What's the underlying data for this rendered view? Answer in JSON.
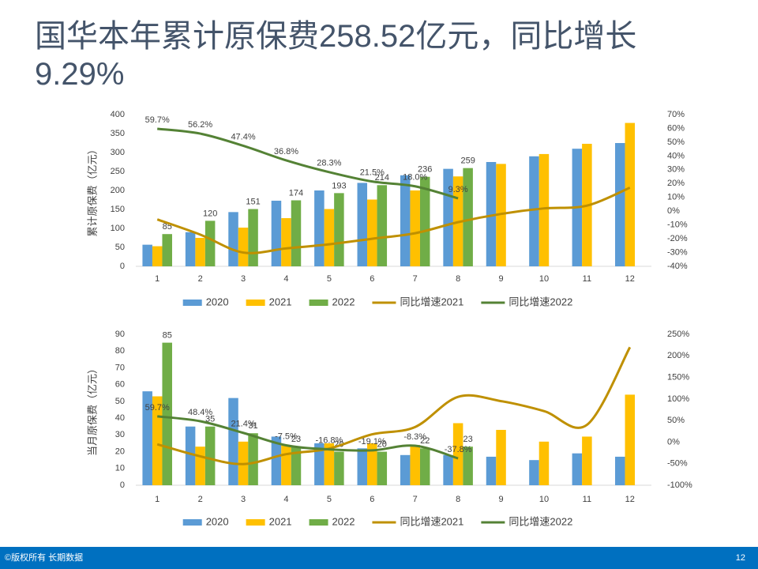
{
  "slide": {
    "title": "国华本年累计原保费258.52亿元，同比增长9.29%",
    "footer": "©版权所有 长期数据",
    "page": "12"
  },
  "chart_data": [
    {
      "type": "bar-line",
      "y_label": "累计原保费（亿元）",
      "categories": [
        "1",
        "2",
        "3",
        "4",
        "5",
        "6",
        "7",
        "8",
        "9",
        "10",
        "11",
        "12"
      ],
      "ylim": [
        0,
        400
      ],
      "yticks": [
        0,
        50,
        100,
        150,
        200,
        250,
        300,
        350,
        400
      ],
      "y2lim": [
        -40,
        70
      ],
      "y2ticks": [
        {
          "value": -40,
          "label": "-40%"
        },
        {
          "value": -30,
          "label": "-30%"
        },
        {
          "value": -20,
          "label": "-20%"
        },
        {
          "value": -10,
          "label": "-10%"
        },
        {
          "value": 0,
          "label": "0%"
        },
        {
          "value": 10,
          "label": "10%"
        },
        {
          "value": 20,
          "label": "20%"
        },
        {
          "value": 30,
          "label": "30%"
        },
        {
          "value": 40,
          "label": "40%"
        },
        {
          "value": 50,
          "label": "50%"
        },
        {
          "value": 60,
          "label": "60%"
        },
        {
          "value": 70,
          "label": "70%"
        }
      ],
      "grid": false,
      "legend": "bottom",
      "series": [
        {
          "name": "2020",
          "kind": "bar",
          "color": "#5b9bd5",
          "values": [
            57,
            90,
            143,
            173,
            200,
            220,
            240,
            257,
            275,
            290,
            310,
            325
          ]
        },
        {
          "name": "2021",
          "kind": "bar",
          "color": "#ffc000",
          "values": [
            53,
            75,
            102,
            127,
            151,
            176,
            200,
            237,
            270,
            296,
            323,
            378
          ]
        },
        {
          "name": "2022",
          "kind": "bar",
          "color": "#70ad47",
          "data_labels": true,
          "values": [
            85,
            120,
            151,
            174,
            193,
            214,
            236,
            259,
            null,
            null,
            null,
            null
          ]
        },
        {
          "name": "同比增速2021",
          "kind": "line",
          "axis": "y2",
          "color": "#bf9000",
          "values": [
            -6,
            -17,
            -30,
            -27,
            -24,
            -20,
            -16,
            -8,
            -2,
            2,
            4,
            17
          ]
        },
        {
          "name": "同比增速2022",
          "kind": "line",
          "axis": "y2",
          "color": "#548235",
          "data_labels": true,
          "values": [
            59.7,
            56.2,
            47.4,
            36.8,
            28.3,
            21.5,
            18.0,
            9.3,
            null,
            null,
            null,
            null
          ],
          "value_labels": [
            "59.7%",
            "56.2%",
            "47.4%",
            "36.8%",
            "28.3%",
            "21.5%",
            "18.0%",
            "9.3%",
            null,
            null,
            null,
            null
          ]
        }
      ]
    },
    {
      "type": "bar-line",
      "y_label": "当月原保费（亿元）",
      "categories": [
        "1",
        "2",
        "3",
        "4",
        "5",
        "6",
        "7",
        "8",
        "9",
        "10",
        "11",
        "12"
      ],
      "ylim": [
        0,
        90
      ],
      "yticks": [
        0,
        10,
        20,
        30,
        40,
        50,
        60,
        70,
        80,
        90
      ],
      "y2lim": [
        -100,
        250
      ],
      "y2ticks": [
        {
          "value": -100,
          "label": "-100%"
        },
        {
          "value": -50,
          "label": "-50%"
        },
        {
          "value": 0,
          "label": "0%"
        },
        {
          "value": 50,
          "label": "50%"
        },
        {
          "value": 100,
          "label": "100%"
        },
        {
          "value": 150,
          "label": "150%"
        },
        {
          "value": 200,
          "label": "200%"
        },
        {
          "value": 250,
          "label": "250%"
        }
      ],
      "grid": false,
      "legend": "bottom",
      "series": [
        {
          "name": "2020",
          "kind": "bar",
          "color": "#5b9bd5",
          "values": [
            56,
            35,
            52,
            29,
            25,
            22,
            18,
            18,
            17,
            15,
            19,
            17
          ]
        },
        {
          "name": "2021",
          "kind": "bar",
          "color": "#ffc000",
          "values": [
            53,
            23,
            26,
            24,
            25,
            25,
            24,
            37,
            33,
            26,
            29,
            54
          ]
        },
        {
          "name": "2022",
          "kind": "bar",
          "color": "#70ad47",
          "data_labels": true,
          "values": [
            85,
            35,
            31,
            23,
            20,
            20,
            22,
            23,
            null,
            null,
            null,
            null
          ]
        },
        {
          "name": "同比增速2021",
          "kind": "line",
          "axis": "y2",
          "color": "#bf9000",
          "values": [
            -5,
            -33,
            -51,
            -28,
            -15,
            18,
            35,
            105,
            95,
            72,
            40,
            220
          ]
        },
        {
          "name": "同比增速2022",
          "kind": "line",
          "axis": "y2",
          "color": "#548235",
          "data_labels": true,
          "values": [
            59.7,
            48.4,
            21.4,
            -7.5,
            -16.8,
            -19.1,
            -8.3,
            -37.8,
            null,
            null,
            null,
            null
          ],
          "value_labels": [
            "59.7%",
            "48.4%",
            "21.4%",
            "-7.5%",
            "-16.8%",
            "-19.1%",
            "-8.3%",
            "-37.8%",
            null,
            null,
            null,
            null
          ]
        }
      ]
    }
  ]
}
